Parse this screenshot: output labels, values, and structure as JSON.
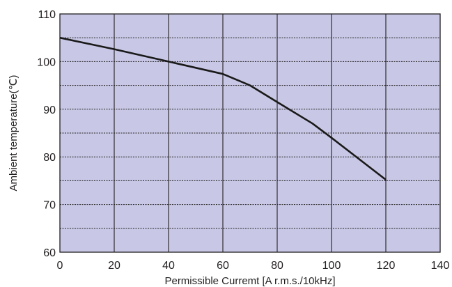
{
  "chart_data": {
    "type": "line",
    "xlabel": "Permissible Curremt [A r.m.s./10kHz]",
    "ylabel": "Ambient temperature(℃)",
    "xlim": [
      0,
      140
    ],
    "ylim": [
      60,
      110
    ],
    "x_ticks": [
      "0",
      "20",
      "40",
      "60",
      "80",
      "100",
      "120",
      "140"
    ],
    "y_ticks": [
      "60",
      "70",
      "80",
      "90",
      "100",
      "110"
    ],
    "grid": "major solid vertical lines, dotted horizontal lines every 5",
    "colors": {
      "plot_background": "#c8c8e6",
      "line": "#1a1a1a",
      "grid": "#231f20"
    },
    "series": [
      {
        "x": [
          0,
          20,
          40,
          60,
          70,
          80,
          93,
          100,
          120
        ],
        "y": [
          105,
          102.6,
          100,
          97.4,
          95,
          91.5,
          87,
          84,
          75.2
        ]
      }
    ]
  }
}
